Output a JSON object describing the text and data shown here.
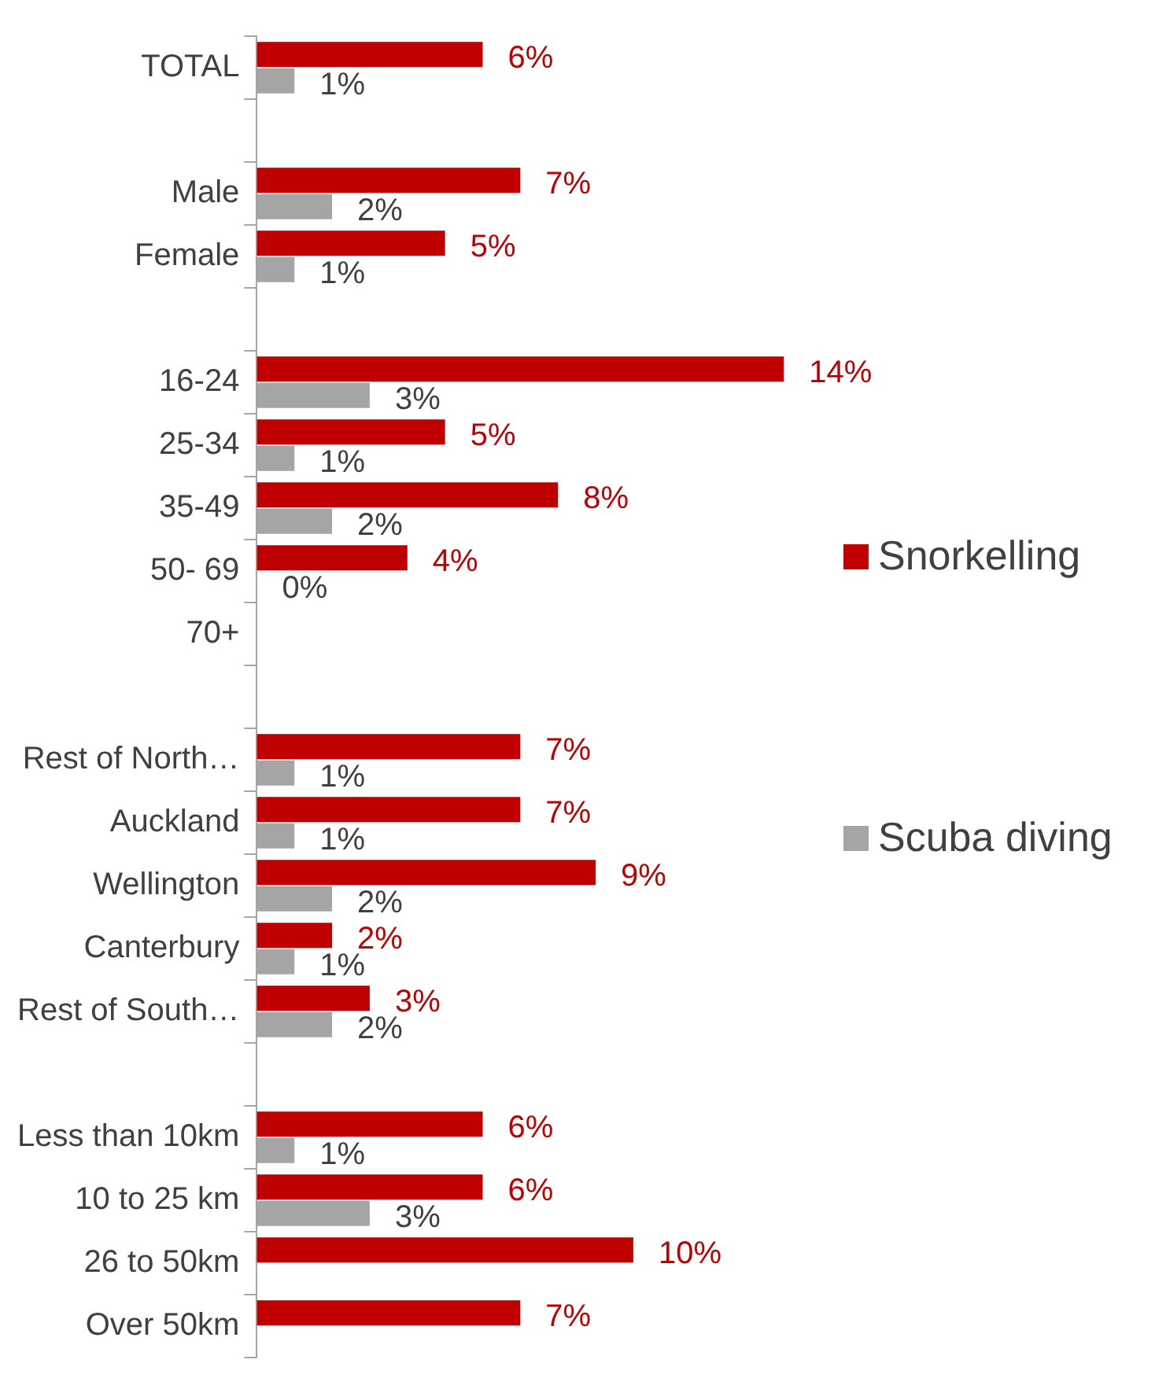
{
  "chart_data": {
    "type": "bar",
    "orientation": "horizontal",
    "legend": "right",
    "grid": false,
    "categories": [
      "TOTAL",
      null,
      "Male",
      "Female",
      null,
      "16-24",
      "25-34",
      "35-49",
      "50- 69",
      "70+",
      null,
      "Rest of North…",
      "Auckland",
      "Wellington",
      "Canterbury",
      "Rest of South…",
      null,
      "Less than 10km",
      "10 to 25 km",
      "26 to 50km",
      "Over 50km"
    ],
    "series": [
      {
        "name": "Snorkelling",
        "color": "#c00000",
        "values": [
          6,
          null,
          7,
          5,
          null,
          14,
          5,
          8,
          4,
          null,
          null,
          7,
          7,
          9,
          2,
          3,
          null,
          6,
          6,
          10,
          7
        ],
        "value_labels": [
          "6%",
          null,
          "7%",
          "5%",
          null,
          "14%",
          "5%",
          "8%",
          "4%",
          null,
          null,
          "7%",
          "7%",
          "9%",
          "2%",
          "3%",
          null,
          "6%",
          "6%",
          "10%",
          "7%"
        ]
      },
      {
        "name": "Scuba diving",
        "color": "#a5a5a5",
        "values": [
          1,
          null,
          2,
          1,
          null,
          3,
          1,
          2,
          0,
          null,
          null,
          1,
          1,
          2,
          1,
          2,
          null,
          1,
          3,
          null,
          null
        ],
        "value_labels": [
          "1%",
          null,
          "2%",
          "1%",
          null,
          "3%",
          "1%",
          "2%",
          "0%",
          null,
          null,
          "1%",
          "1%",
          "2%",
          "1%",
          "2%",
          null,
          "1%",
          "3%",
          null,
          null
        ]
      }
    ]
  }
}
